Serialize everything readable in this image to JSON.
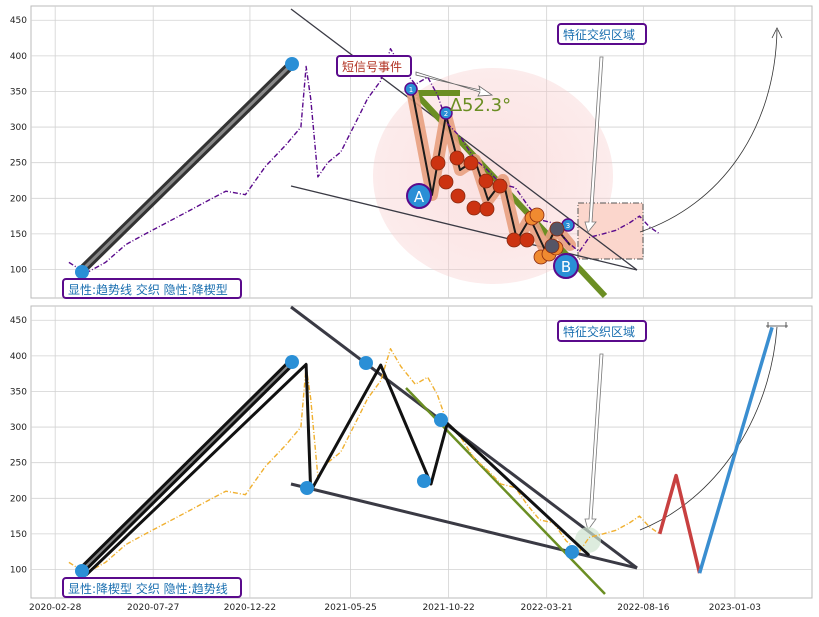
{
  "chart_data": [
    {
      "type": "line",
      "title": "",
      "xlabel": "",
      "ylabel": "",
      "ylim": [
        60,
        470
      ],
      "yticks": [
        100,
        150,
        200,
        250,
        300,
        350,
        400,
        450
      ],
      "grid": true,
      "series": [
        {
          "name": "",
          "color": "#5a0a8c",
          "style": "dashdot",
          "points": [
            [
              "2020-03-20",
              110
            ],
            [
              "2020-04-15",
              95
            ],
            [
              "2020-05-15",
              110
            ],
            [
              "2020-06-15",
              135
            ],
            [
              "2020-07-15",
              150
            ],
            [
              "2020-08-15",
              165
            ],
            [
              "2020-09-15",
              180
            ],
            [
              "2020-10-15",
              195
            ],
            [
              "2020-11-15",
              210
            ],
            [
              "2020-12-15",
              205
            ],
            [
              "2021-01-15",
              245
            ],
            [
              "2021-02-15",
              275
            ],
            [
              "2021-03-10",
              300
            ],
            [
              "2021-03-18",
              385
            ],
            [
              "2021-03-25",
              340
            ],
            [
              "2021-04-05",
              230
            ],
            [
              "2021-04-20",
              250
            ],
            [
              "2021-05-10",
              265
            ],
            [
              "2021-06-01",
              305
            ],
            [
              "2021-06-20",
              340
            ],
            [
              "2021-07-10",
              365
            ],
            [
              "2021-07-25",
              410
            ],
            [
              "2021-08-10",
              385
            ],
            [
              "2021-09-01",
              360
            ],
            [
              "2021-09-20",
              370
            ],
            [
              "2021-10-05",
              345
            ],
            [
              "2021-10-20",
              305
            ],
            [
              "2021-11-10",
              285
            ],
            [
              "2021-12-01",
              255
            ],
            [
              "2021-12-20",
              240
            ],
            [
              "2022-01-10",
              220
            ],
            [
              "2022-02-01",
              215
            ],
            [
              "2022-02-20",
              190
            ],
            [
              "2022-03-10",
              170
            ],
            [
              "2022-04-01",
              165
            ],
            [
              "2022-04-20",
              140
            ],
            [
              "2022-05-10",
              125
            ],
            [
              "2022-05-25",
              145
            ],
            [
              "2022-06-15",
              150
            ],
            [
              "2022-07-05",
              155
            ],
            [
              "2022-07-25",
              165
            ],
            [
              "2022-08-10",
              175
            ],
            [
              "2022-08-25",
              160
            ],
            [
              "2022-09-10",
              150
            ]
          ]
        }
      ],
      "annotations": [
        {
          "text": "显性:趋势线 交织 隐性:降楔型",
          "position": "bottom-left"
        },
        {
          "text": "短信号事件",
          "position": "top-center"
        },
        {
          "text": "特征交织区域",
          "position": "top-right"
        },
        {
          "text": "∆52.3°",
          "position": "top-center"
        },
        {
          "text": "A",
          "position": "center"
        },
        {
          "text": "B",
          "position": "bottom-right"
        },
        {
          "text": "1",
          "position": "top-center"
        },
        {
          "text": "2",
          "position": "top-center"
        },
        {
          "text": "3",
          "position": "bottom-right"
        }
      ]
    },
    {
      "type": "line",
      "title": "",
      "xlabel": "",
      "ylabel": "",
      "ylim": [
        60,
        470
      ],
      "yticks": [
        100,
        150,
        200,
        250,
        300,
        350,
        400,
        450
      ],
      "xticks": [
        "2020-02-28",
        "2020-07-27",
        "2020-12-22",
        "2021-05-25",
        "2021-10-22",
        "2022-03-21",
        "2022-08-16",
        "2023-01-03"
      ],
      "grid": true,
      "series": [
        {
          "name": "",
          "color": "#f0b030",
          "style": "dashdot",
          "points": [
            [
              "2020-03-20",
              110
            ],
            [
              "2020-04-15",
              95
            ],
            [
              "2020-05-15",
              110
            ],
            [
              "2020-06-15",
              135
            ],
            [
              "2020-07-15",
              150
            ],
            [
              "2020-08-15",
              165
            ],
            [
              "2020-09-15",
              180
            ],
            [
              "2020-10-15",
              195
            ],
            [
              "2020-11-15",
              210
            ],
            [
              "2020-12-15",
              205
            ],
            [
              "2021-01-15",
              245
            ],
            [
              "2021-02-15",
              275
            ],
            [
              "2021-03-10",
              300
            ],
            [
              "2021-03-18",
              385
            ],
            [
              "2021-03-25",
              340
            ],
            [
              "2021-04-05",
              230
            ],
            [
              "2021-04-20",
              250
            ],
            [
              "2021-05-10",
              265
            ],
            [
              "2021-06-01",
              305
            ],
            [
              "2021-06-20",
              340
            ],
            [
              "2021-07-10",
              365
            ],
            [
              "2021-07-25",
              410
            ],
            [
              "2021-08-10",
              385
            ],
            [
              "2021-09-01",
              360
            ],
            [
              "2021-09-20",
              370
            ],
            [
              "2021-10-05",
              345
            ],
            [
              "2021-10-20",
              305
            ],
            [
              "2021-11-10",
              285
            ],
            [
              "2021-12-01",
              255
            ],
            [
              "2021-12-20",
              240
            ],
            [
              "2022-01-10",
              220
            ],
            [
              "2022-02-01",
              215
            ],
            [
              "2022-02-20",
              190
            ],
            [
              "2022-03-10",
              170
            ],
            [
              "2022-04-01",
              165
            ],
            [
              "2022-04-20",
              140
            ],
            [
              "2022-05-10",
              125
            ],
            [
              "2022-05-25",
              145
            ],
            [
              "2022-06-15",
              150
            ],
            [
              "2022-07-05",
              155
            ],
            [
              "2022-07-25",
              165
            ],
            [
              "2022-08-10",
              175
            ],
            [
              "2022-08-25",
              160
            ],
            [
              "2022-09-10",
              150
            ]
          ]
        },
        {
          "name": "",
          "color": "#111111",
          "style": "solid",
          "points": [
            [
              "2020-04-15",
              92
            ],
            [
              "2021-03-18",
              388
            ],
            [
              "2021-03-25",
              210
            ],
            [
              "2021-07-10",
              387
            ],
            [
              "2021-09-25",
              220
            ],
            [
              "2021-10-20",
              305
            ],
            [
              "2022-05-25",
              120
            ]
          ]
        },
        {
          "name": "",
          "color": "#c84040",
          "style": "solid",
          "points": [
            [
              "2022-09-10",
              150
            ],
            [
              "2022-10-05",
              232
            ],
            [
              "2022-11-10",
              95
            ]
          ]
        },
        {
          "name": "",
          "color": "#3a8ed0",
          "style": "solid",
          "points": [
            [
              "2022-11-10",
              95
            ],
            [
              "2023-03-01",
              440
            ]
          ]
        }
      ],
      "annotations": [
        {
          "text": "显性:降楔型 交织 隐性:趋势线",
          "position": "bottom-left"
        },
        {
          "text": "特征交织区域",
          "position": "top-right"
        }
      ]
    }
  ]
}
